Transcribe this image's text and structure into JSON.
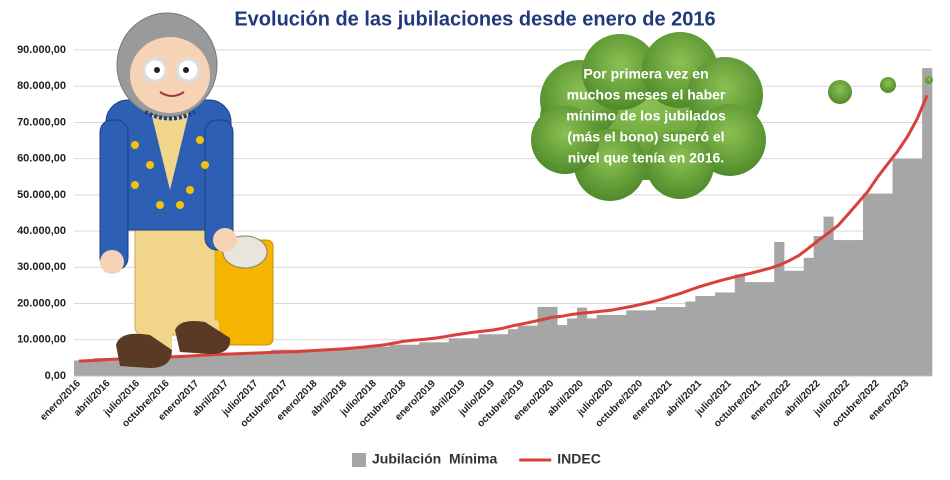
{
  "chart_data": {
    "type": "bar",
    "title": "Evolución de las jubilaciones desde enero de 2016",
    "annotation": [
      "Por primera vez en",
      "muchos meses el haber",
      "mínimo de los jubilados",
      "(más el bono) superó el",
      "nivel que tenía en 2016."
    ],
    "categories": [
      "enero/2016",
      null,
      null,
      "abril/2016",
      null,
      null,
      "julio/2016",
      null,
      null,
      "octubre/2016",
      null,
      null,
      "enero/2017",
      null,
      null,
      "abril/2017",
      null,
      null,
      "julio/2017",
      null,
      null,
      "octubre/2017",
      null,
      null,
      "enero/2018",
      null,
      null,
      "abril/2018",
      null,
      null,
      "julio/2018",
      null,
      null,
      "octubre/2018",
      null,
      null,
      "enero/2019",
      null,
      null,
      "abril/2019",
      null,
      null,
      "julio/2019",
      null,
      null,
      "octubre/2019",
      null,
      null,
      "enero/2020",
      null,
      null,
      "abril/2020",
      null,
      null,
      "julio/2020",
      null,
      null,
      "octubre/2020",
      null,
      null,
      "enero/2021",
      null,
      null,
      "abril/2021",
      null,
      null,
      "julio/2021",
      null,
      null,
      "octubre/2021",
      null,
      null,
      "enero/2022",
      null,
      null,
      "abril/2022",
      null,
      null,
      "julio/2022",
      null,
      null,
      "octubre/2022",
      null,
      null,
      "enero/2023",
      null,
      null
    ],
    "series": [
      {
        "name": "Jubilación  Mínima",
        "type": "bar",
        "color": "#a6a6a6",
        "values": [
          4299,
          4299,
          4959,
          4959,
          4959,
          4959,
          4959,
          4959,
          5661,
          5661,
          5661,
          5661,
          5661,
          5661,
          6394,
          6394,
          6394,
          6394,
          6394,
          6394,
          7246,
          7246,
          7246,
          7246,
          7246,
          7246,
          7660,
          7660,
          7660,
          8096,
          8096,
          8096,
          8637,
          8637,
          8637,
          9309,
          9309,
          9309,
          10410,
          10410,
          10410,
          11528,
          11528,
          11528,
          12937,
          13900,
          13900,
          19068,
          19068,
          14068,
          15892,
          18892,
          15892,
          16864,
          16864,
          16864,
          18129,
          18129,
          18129,
          19035,
          19035,
          19035,
          20571,
          22071,
          22071,
          23065,
          23065,
          28065,
          25922,
          25922,
          25922,
          37000,
          29062,
          29062,
          32630,
          38630,
          44000,
          37525,
          37525,
          37525,
          50353,
          50353,
          50353,
          60000,
          60000,
          60000,
          85000
        ]
      },
      {
        "name": "INDEC",
        "type": "line",
        "color": "#d9403a",
        "values": [
          4100,
          4250,
          4400,
          4550,
          4700,
          4850,
          4950,
          5050,
          5150,
          5250,
          5350,
          5500,
          5650,
          5800,
          5950,
          6050,
          6150,
          6250,
          6350,
          6450,
          6550,
          6650,
          6750,
          6900,
          7050,
          7200,
          7350,
          7550,
          7750,
          8000,
          8300,
          8600,
          9100,
          9600,
          9900,
          10100,
          10400,
          10800,
          11300,
          11700,
          12100,
          12400,
          12700,
          13200,
          13900,
          14400,
          15000,
          15600,
          16200,
          16500,
          17000,
          17300,
          17600,
          17900,
          18200,
          18700,
          19200,
          19800,
          20400,
          21100,
          22000,
          22800,
          23800,
          24700,
          25500,
          26300,
          27000,
          27700,
          28300,
          29000,
          29700,
          30600,
          31800,
          33300,
          35300,
          37500,
          39500,
          41600,
          44700,
          47800,
          51000,
          55000,
          58500,
          62000,
          66000,
          71000,
          77500
        ]
      }
    ],
    "ylim": [
      0,
      90000
    ],
    "yticks": [
      {
        "value": 0,
        "label": "0,00"
      },
      {
        "value": 10000,
        "label": "10.000,00"
      },
      {
        "value": 20000,
        "label": "20.000,00"
      },
      {
        "value": 30000,
        "label": "30.000,00"
      },
      {
        "value": 40000,
        "label": "40.000,00"
      },
      {
        "value": 50000,
        "label": "50.000,00"
      },
      {
        "value": 60000,
        "label": "60.000,00"
      },
      {
        "value": 70000,
        "label": "70.000,00"
      },
      {
        "value": 80000,
        "label": "80.000,00"
      },
      {
        "value": 90000,
        "label": "90.000,00"
      }
    ],
    "grid": true,
    "legend": "bottom"
  }
}
